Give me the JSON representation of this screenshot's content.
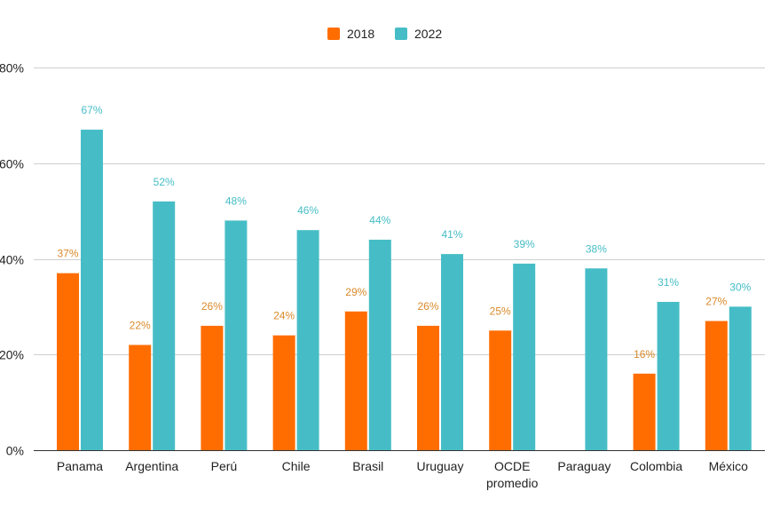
{
  "chart_data": {
    "type": "bar",
    "categories": [
      [
        "Panama"
      ],
      [
        "Argentina"
      ],
      [
        "Perú"
      ],
      [
        "Chile"
      ],
      [
        "Brasil"
      ],
      [
        "Uruguay"
      ],
      [
        "OCDE",
        "promedio"
      ],
      [
        "Paraguay"
      ],
      [
        "Colombia"
      ],
      [
        "México"
      ]
    ],
    "series": [
      {
        "name": "2018",
        "color": "#ff6d01",
        "label_color": "#d98a2b",
        "values": [
          37,
          22,
          26,
          24,
          29,
          26,
          25,
          null,
          16,
          27
        ],
        "labels": [
          "37%",
          "22%",
          "26%",
          "24%",
          "29%",
          "26%",
          "25%",
          "",
          "16%",
          "27%"
        ]
      },
      {
        "name": "2022",
        "color": "#46bdc6",
        "label_color": "#46bdc6",
        "values": [
          67,
          52,
          48,
          46,
          44,
          41,
          39,
          38,
          31,
          30
        ],
        "labels": [
          "67%",
          "52%",
          "48%",
          "46%",
          "44%",
          "41%",
          "39%",
          "38%",
          "31%",
          "30%"
        ]
      }
    ],
    "y_ticks": [
      "0%",
      "20%",
      "40%",
      "60%",
      "80%"
    ],
    "ylim": [
      0,
      80
    ],
    "grid": true,
    "legend": "top-center",
    "title": "",
    "xlabel": "",
    "ylabel": ""
  }
}
